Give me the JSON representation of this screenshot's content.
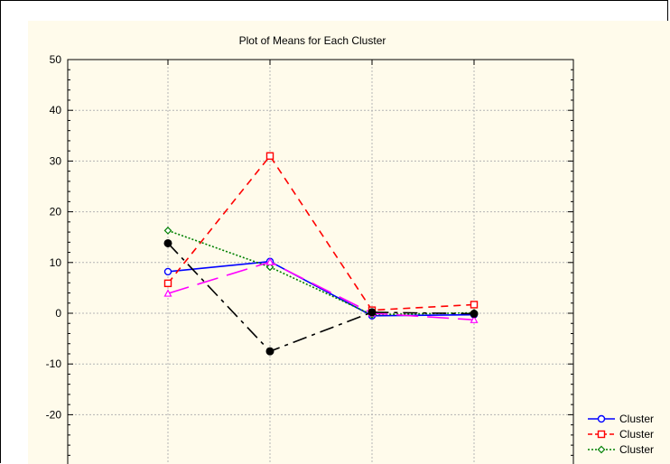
{
  "chart_data": {
    "type": "line",
    "title": "Plot of Means for Each Cluster",
    "xlabel": "",
    "ylabel": "",
    "ylim": [
      -30,
      50
    ],
    "yticks": [
      50,
      40,
      30,
      20,
      10,
      0,
      -10,
      -20
    ],
    "categories": [
      "",
      "",
      "",
      ""
    ],
    "grid": true,
    "legend_placement": "bottom-right",
    "series": [
      {
        "name": "Cluster",
        "color": "#0000ff",
        "dash": "",
        "marker": "circle",
        "values": [
          8.2,
          10.2,
          -0.5,
          -0.3
        ]
      },
      {
        "name": "Cluster",
        "color": "#ff0000",
        "dash": "8,6",
        "marker": "square",
        "values": [
          5.9,
          31.0,
          0.6,
          1.7
        ]
      },
      {
        "name": "Cluster",
        "color": "#008000",
        "dash": "2,2",
        "marker": "diamond",
        "values": [
          16.3,
          9.1,
          -0.3,
          0.1
        ]
      },
      {
        "name": "",
        "color": "#ff00ff",
        "dash": "24,10",
        "marker": "triangle",
        "values": [
          3.9,
          10.1,
          0.0,
          -1.3
        ]
      },
      {
        "name": "",
        "color": "#000000",
        "dash": "16,6,4,6",
        "marker": "dot",
        "values": [
          13.8,
          -7.5,
          0.2,
          -0.1
        ]
      }
    ]
  }
}
